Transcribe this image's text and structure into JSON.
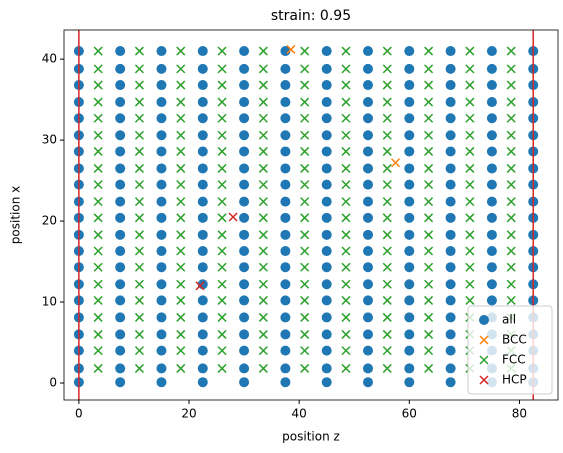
{
  "chart_data": {
    "type": "scatter",
    "title": "strain: 0.95",
    "x_label": "position z",
    "y_label": "position x",
    "xlim": [
      -2.7,
      87
    ],
    "ylim": [
      -2.1,
      43.6
    ],
    "xticks": [
      0,
      20,
      40,
      60,
      80
    ],
    "yticks": [
      0,
      10,
      20,
      30,
      40
    ],
    "legend": "lower right",
    "vlines": [
      0,
      82.5
    ],
    "vline_color": "#d62728",
    "series": [
      {
        "name": "all",
        "color": "#1f77b4",
        "marker": "o",
        "x": [
          0,
          7.5,
          15,
          22.5,
          30,
          37.5,
          45,
          52.5,
          60,
          67.5,
          75,
          82.5,
          0,
          7.5,
          15,
          22.5,
          30,
          37.5,
          45,
          52.5,
          60,
          67.5,
          75,
          82.5,
          0,
          7.5,
          15,
          22.5,
          30,
          37.5,
          45,
          52.5,
          60,
          67.5,
          75,
          82.5,
          0,
          7.5,
          15,
          22.5,
          30,
          37.5,
          45,
          52.5,
          60,
          67.5,
          75,
          82.5,
          0,
          7.5,
          15,
          22.5,
          30,
          37.5,
          45,
          52.5,
          60,
          67.5,
          75,
          82.5,
          0,
          7.5,
          15,
          22.5,
          30,
          37.5,
          45,
          52.5,
          60,
          67.5,
          75,
          82.5,
          0,
          7.5,
          15,
          22.5,
          30,
          37.5,
          45,
          52.5,
          60,
          67.5,
          75,
          82.5,
          0,
          7.5,
          15,
          22.5,
          30,
          37.5,
          45,
          52.5,
          60,
          67.5,
          75,
          82.5,
          0,
          7.5,
          15,
          22.5,
          30,
          37.5,
          45,
          52.5,
          60,
          67.5,
          75,
          82.5,
          0,
          7.5,
          15,
          22.5,
          30,
          37.5,
          45,
          52.5,
          60,
          67.5,
          75,
          82.5,
          0,
          7.5,
          15,
          22.5,
          30,
          37.5,
          45,
          52.5,
          60,
          67.5,
          75,
          82.5,
          0,
          7.5,
          15,
          22.5,
          30,
          37.5,
          45,
          52.5,
          60,
          67.5,
          75,
          82.5,
          0,
          7.5,
          15,
          22.5,
          30,
          37.5,
          45,
          52.5,
          60,
          67.5,
          75,
          82.5,
          0,
          7.5,
          15,
          22.5,
          30,
          37.5,
          45,
          52.5,
          60,
          67.5,
          75,
          82.5,
          0,
          7.5,
          15,
          22.5,
          30,
          37.5,
          45,
          52.5,
          60,
          67.5,
          75,
          82.5,
          0,
          7.5,
          15,
          22.5,
          30,
          37.5,
          45,
          52.5,
          60,
          67.5,
          75,
          82.5,
          0,
          7.5,
          15,
          22.5,
          30,
          37.5,
          45,
          52.5,
          60,
          67.5,
          75,
          82.5,
          0,
          7.5,
          15,
          22.5,
          30,
          37.5,
          45,
          52.5,
          60,
          67.5,
          75,
          82.5,
          0,
          7.5,
          15,
          22.5,
          30,
          37.5,
          45,
          52.5,
          60,
          67.5,
          75,
          82.5,
          0,
          7.5,
          15,
          22.5,
          30,
          37.5,
          45,
          52.5,
          60,
          67.5,
          75,
          82.5,
          0,
          7.5,
          15,
          22.5,
          30,
          37.5,
          45,
          52.5,
          60,
          67.5,
          75,
          82.5
        ],
        "values": [
          0.1,
          0.1,
          0.1,
          0.1,
          0.1,
          0.1,
          0.1,
          0.1,
          0.1,
          0.1,
          0.1,
          0.1,
          1.8,
          1.8,
          1.8,
          1.8,
          1.8,
          1.8,
          1.8,
          1.8,
          1.8,
          1.8,
          1.8,
          1.8,
          4,
          4,
          4,
          4,
          4,
          4,
          4,
          4,
          4,
          4,
          4,
          4,
          6,
          6,
          6,
          6,
          6,
          6,
          6,
          6,
          6,
          6,
          6,
          6,
          8.1,
          8.1,
          8.1,
          8.1,
          8.1,
          8.1,
          8.1,
          8.1,
          8.1,
          8.1,
          8.1,
          8.1,
          10.2,
          10.2,
          10.2,
          10.2,
          10.2,
          10.2,
          10.2,
          10.2,
          10.2,
          10.2,
          10.2,
          10.2,
          12.2,
          12.2,
          12.2,
          12.2,
          12.2,
          12.2,
          12.2,
          12.2,
          12.2,
          12.2,
          12.2,
          12.2,
          14.3,
          14.3,
          14.3,
          14.3,
          14.3,
          14.3,
          14.3,
          14.3,
          14.3,
          14.3,
          14.3,
          14.3,
          16.3,
          16.3,
          16.3,
          16.3,
          16.3,
          16.3,
          16.3,
          16.3,
          16.3,
          16.3,
          16.3,
          16.3,
          18.3,
          18.3,
          18.3,
          18.3,
          18.3,
          18.3,
          18.3,
          18.3,
          18.3,
          18.3,
          18.3,
          18.3,
          20.4,
          20.4,
          20.4,
          20.4,
          20.4,
          20.4,
          20.4,
          20.4,
          20.4,
          20.4,
          20.4,
          20.4,
          22.4,
          22.4,
          22.4,
          22.4,
          22.4,
          22.4,
          22.4,
          22.4,
          22.4,
          22.4,
          22.4,
          22.4,
          24.5,
          24.5,
          24.5,
          24.5,
          24.5,
          24.5,
          24.5,
          24.5,
          24.5,
          24.5,
          24.5,
          24.5,
          26.5,
          26.5,
          26.5,
          26.5,
          26.5,
          26.5,
          26.5,
          26.5,
          26.5,
          26.5,
          26.5,
          26.5,
          28.6,
          28.6,
          28.6,
          28.6,
          28.6,
          28.6,
          28.6,
          28.6,
          28.6,
          28.6,
          28.6,
          28.6,
          30.6,
          30.6,
          30.6,
          30.6,
          30.6,
          30.6,
          30.6,
          30.6,
          30.6,
          30.6,
          30.6,
          30.6,
          32.7,
          32.7,
          32.7,
          32.7,
          32.7,
          32.7,
          32.7,
          32.7,
          32.7,
          32.7,
          32.7,
          32.7,
          34.7,
          34.7,
          34.7,
          34.7,
          34.7,
          34.7,
          34.7,
          34.7,
          34.7,
          34.7,
          34.7,
          34.7,
          36.8,
          36.8,
          36.8,
          36.8,
          36.8,
          36.8,
          36.8,
          36.8,
          36.8,
          36.8,
          36.8,
          36.8,
          38.8,
          38.8,
          38.8,
          38.8,
          38.8,
          38.8,
          38.8,
          38.8,
          38.8,
          38.8,
          38.8,
          38.8,
          41,
          41,
          41,
          41,
          41,
          41,
          41,
          41,
          41,
          41,
          41,
          41
        ]
      },
      {
        "name": "BCC",
        "color": "#ff7f0e",
        "marker": "x",
        "x": [
          57.5,
          38.5
        ],
        "values": [
          27.2,
          41.2
        ]
      },
      {
        "name": "FCC",
        "color": "#2ca02c",
        "marker": "x",
        "x": [
          3.5,
          11,
          18.5,
          26,
          33.5,
          41,
          48.5,
          56,
          63.5,
          71,
          78.5,
          3.5,
          11,
          18.5,
          26,
          33.5,
          41,
          48.5,
          56,
          63.5,
          71,
          78.5,
          3.5,
          11,
          18.5,
          26,
          33.5,
          41,
          48.5,
          56,
          63.5,
          71,
          78.5,
          3.5,
          11,
          18.5,
          26,
          33.5,
          41,
          48.5,
          56,
          63.5,
          71,
          78.5,
          3.5,
          11,
          18.5,
          26,
          33.5,
          41,
          48.5,
          56,
          63.5,
          71,
          78.5,
          3.5,
          11,
          18.5,
          26,
          33.5,
          41,
          48.5,
          56,
          63.5,
          71,
          78.5,
          3.5,
          11,
          18.5,
          26,
          33.5,
          41,
          48.5,
          56,
          63.5,
          71,
          78.5,
          3.5,
          11,
          18.5,
          26,
          33.5,
          41,
          48.5,
          56,
          63.5,
          71,
          78.5,
          3.5,
          11,
          18.5,
          26,
          33.5,
          41,
          48.5,
          56,
          63.5,
          71,
          78.5,
          3.5,
          11,
          18.5,
          26,
          33.5,
          41,
          48.5,
          56,
          63.5,
          71,
          78.5,
          3.5,
          11,
          18.5,
          26,
          33.5,
          41,
          48.5,
          56,
          63.5,
          71,
          78.5,
          3.5,
          11,
          18.5,
          26,
          33.5,
          41,
          48.5,
          56,
          63.5,
          71,
          78.5,
          3.5,
          11,
          18.5,
          26,
          33.5,
          41,
          48.5,
          56,
          63.5,
          71,
          78.5,
          3.5,
          11,
          18.5,
          26,
          33.5,
          41,
          48.5,
          56,
          63.5,
          71,
          78.5,
          3.5,
          11,
          18.5,
          26,
          33.5,
          41,
          48.5,
          56,
          63.5,
          71,
          78.5,
          3.5,
          11,
          18.5,
          26,
          33.5,
          41,
          48.5,
          56,
          63.5,
          71,
          78.5,
          3.5,
          11,
          18.5,
          26,
          33.5,
          41,
          48.5,
          56,
          63.5,
          71,
          78.5,
          3.5,
          11,
          18.5,
          26,
          33.5,
          41,
          48.5,
          56,
          63.5,
          71,
          78.5,
          3.5,
          11,
          18.5,
          26,
          33.5,
          41,
          48.5,
          56,
          63.5,
          71,
          78.5,
          3.5,
          11,
          18.5,
          26,
          33.5,
          41,
          48.5,
          56,
          63.5,
          71,
          78.5
        ],
        "values": [
          1.8,
          1.8,
          1.8,
          1.8,
          1.8,
          1.8,
          1.8,
          1.8,
          1.8,
          1.8,
          1.8,
          4,
          4,
          4,
          4,
          4,
          4,
          4,
          4,
          4,
          4,
          4,
          6,
          6,
          6,
          6,
          6,
          6,
          6,
          6,
          6,
          6,
          6,
          8.1,
          8.1,
          8.1,
          8.1,
          8.1,
          8.1,
          8.1,
          8.1,
          8.1,
          8.1,
          8.1,
          10.2,
          10.2,
          10.2,
          10.2,
          10.2,
          10.2,
          10.2,
          10.2,
          10.2,
          10.2,
          10.2,
          12.2,
          12.2,
          12.2,
          12.2,
          12.2,
          12.2,
          12.2,
          12.2,
          12.2,
          12.2,
          12.2,
          14.3,
          14.3,
          14.3,
          14.3,
          14.3,
          14.3,
          14.3,
          14.3,
          14.3,
          14.3,
          14.3,
          16.3,
          16.3,
          16.3,
          16.3,
          16.3,
          16.3,
          16.3,
          16.3,
          16.3,
          16.3,
          16.3,
          18.3,
          18.3,
          18.3,
          18.3,
          18.3,
          18.3,
          18.3,
          18.3,
          18.3,
          18.3,
          18.3,
          20.4,
          20.4,
          20.4,
          20.4,
          20.4,
          20.4,
          20.4,
          20.4,
          20.4,
          20.4,
          20.4,
          22.4,
          22.4,
          22.4,
          22.4,
          22.4,
          22.4,
          22.4,
          22.4,
          22.4,
          22.4,
          22.4,
          24.5,
          24.5,
          24.5,
          24.5,
          24.5,
          24.5,
          24.5,
          24.5,
          24.5,
          24.5,
          24.5,
          26.5,
          26.5,
          26.5,
          26.5,
          26.5,
          26.5,
          26.5,
          26.5,
          26.5,
          26.5,
          26.5,
          28.6,
          28.6,
          28.6,
          28.6,
          28.6,
          28.6,
          28.6,
          28.6,
          28.6,
          28.6,
          28.6,
          30.6,
          30.6,
          30.6,
          30.6,
          30.6,
          30.6,
          30.6,
          30.6,
          30.6,
          30.6,
          30.6,
          32.7,
          32.7,
          32.7,
          32.7,
          32.7,
          32.7,
          32.7,
          32.7,
          32.7,
          32.7,
          32.7,
          34.7,
          34.7,
          34.7,
          34.7,
          34.7,
          34.7,
          34.7,
          34.7,
          34.7,
          34.7,
          34.7,
          36.8,
          36.8,
          36.8,
          36.8,
          36.8,
          36.8,
          36.8,
          36.8,
          36.8,
          36.8,
          36.8,
          38.8,
          38.8,
          38.8,
          38.8,
          38.8,
          38.8,
          38.8,
          38.8,
          38.8,
          38.8,
          38.8,
          41,
          41,
          41,
          41,
          41,
          41,
          41,
          41,
          41,
          41,
          41
        ]
      },
      {
        "name": "HCP",
        "color": "#d62728",
        "marker": "x",
        "x": [
          28,
          22
        ],
        "values": [
          20.5,
          12
        ]
      }
    ]
  }
}
